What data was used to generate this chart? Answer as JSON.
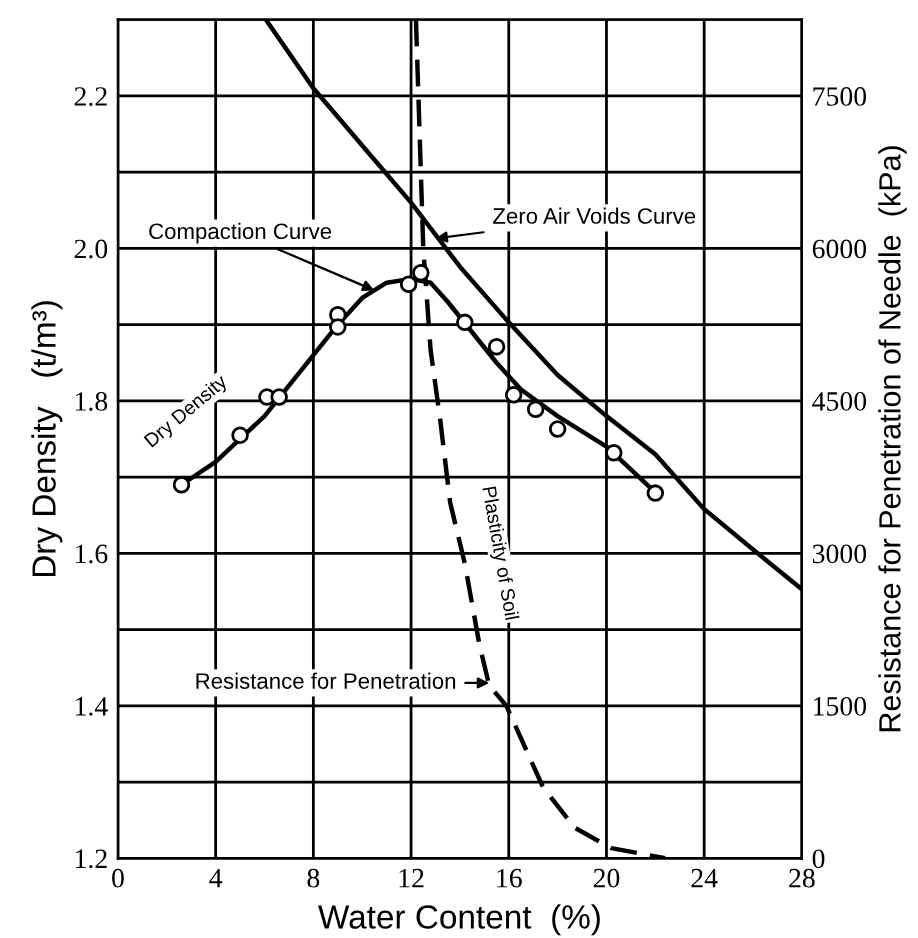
{
  "chart_data": {
    "type": "line",
    "xlabel": "Water Content  (%)",
    "ylabel": "Dry Density   (t/m³)",
    "y2label": "Resistance for Penetration of Needle  (kPa)",
    "xlim": [
      0,
      28
    ],
    "xticks": [
      0,
      4,
      8,
      12,
      16,
      20,
      24,
      28
    ],
    "ylim": [
      1.2,
      2.3
    ],
    "yticks": [
      1.2,
      {
        "value": 1.3,
        "label": null
      },
      1.4,
      {
        "value": 1.5,
        "label": null
      },
      1.6,
      {
        "value": 1.7,
        "label": null
      },
      1.8,
      {
        "value": 1.9,
        "label": null
      },
      {
        "value": 2.0,
        "label": "2.0"
      },
      {
        "value": 2.1,
        "label": null
      },
      2.2
    ],
    "y2lim": [
      0,
      8250
    ],
    "y2ticks": [
      0,
      1500,
      3000,
      4500,
      6000,
      7500
    ],
    "grid": true,
    "legend": false,
    "series": [
      {
        "type": "scatter",
        "color": "#000000",
        "marker": "circle",
        "x": [
          2.6,
          5.0,
          6.1,
          6.6,
          9.0,
          9.0,
          11.9,
          12.4,
          14.2,
          15.5,
          16.2,
          17.1,
          18.0,
          20.3,
          22.0
        ],
        "values": [
          1.69,
          1.755,
          1.805,
          1.805,
          1.913,
          1.897,
          1.953,
          1.968,
          1.903,
          1.871,
          1.808,
          1.789,
          1.763,
          1.732,
          1.679
        ]
      },
      {
        "color": "#000000",
        "line_style": "solid",
        "x": [
          2.6,
          4,
          5,
          6,
          7,
          8,
          9,
          10,
          11,
          12,
          12.8,
          13.5,
          14.5,
          15.5,
          16.5,
          18,
          20,
          22
        ],
        "values": [
          1.69,
          1.72,
          1.75,
          1.78,
          1.82,
          1.86,
          1.9,
          1.935,
          1.955,
          1.96,
          1.955,
          1.93,
          1.89,
          1.85,
          1.815,
          1.78,
          1.74,
          1.68
        ]
      },
      {
        "color": "#000000",
        "line_style": "solid",
        "x": [
          6.06,
          8,
          10,
          12,
          14,
          16,
          18,
          20,
          22,
          24,
          26,
          28
        ],
        "values": [
          2.3,
          2.21,
          2.135,
          2.06,
          1.976,
          1.903,
          1.834,
          1.78,
          1.73,
          1.658,
          1.605,
          1.553
        ]
      },
      {
        "color": "#000000",
        "line_style": "dashed",
        "axis": "y2",
        "x": [
          12.2,
          12.5,
          12.8,
          13.2,
          13.6,
          14.2,
          14.8,
          15.2,
          15.9,
          17.4,
          18.7,
          20.2,
          22.4
        ],
        "values": [
          8250,
          6000,
          5000,
          4300,
          3500,
          2900,
          2100,
          1700,
          1500,
          700,
          300,
          100,
          0
        ]
      }
    ],
    "annotations": [
      {
        "text": "Compaction Curve",
        "x": 10.5,
        "y": 1.945
      },
      {
        "text": "Zero Air Voids Curve",
        "x": 13.0,
        "y": 2.013
      },
      "Dry Density",
      "Plasticity of Soil",
      {
        "text": "Resistance for Penetration",
        "x": 15.2,
        "y": 1.43
      }
    ]
  }
}
